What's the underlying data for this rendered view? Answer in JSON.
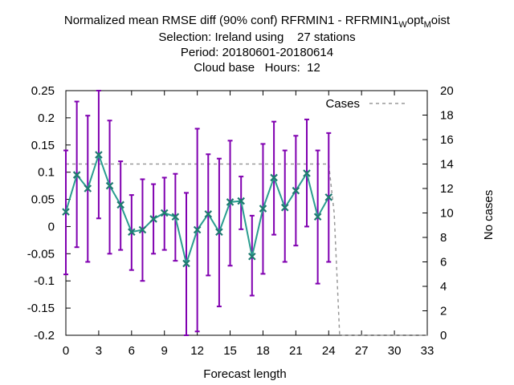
{
  "header": {
    "title_main": "Normalized mean RMSE diff (90% conf) RFRMIN1 - RFRMIN1",
    "title_sub1": "W",
    "title_mid": "opt",
    "title_sub2": "M",
    "title_end": "oist",
    "selection": "Selection: Ireland using    27 stations",
    "period": "Period: 20180601-20180614",
    "cloud": "Cloud base   Hours:  12"
  },
  "chart_data": {
    "type": "line",
    "xlabel": "Forecast length",
    "ylabel": "",
    "y2label": "No cases",
    "xlim": [
      0,
      33
    ],
    "ylim": [
      -0.2,
      0.25
    ],
    "y2lim": [
      0,
      20
    ],
    "xticks": [
      "0",
      "3",
      "6",
      "9",
      "12",
      "15",
      "18",
      "21",
      "24",
      "27",
      "30",
      "33"
    ],
    "yticks": [
      "0.25",
      "0.2",
      "0.15",
      "0.1",
      "0.05",
      "0",
      "-0.05",
      "-0.1",
      "-0.15",
      "-0.2"
    ],
    "y2ticks": [
      "20",
      "18",
      "16",
      "14",
      "12",
      "10",
      "8",
      "6",
      "4",
      "2",
      "0"
    ],
    "legend": "top-right",
    "grid": false,
    "series": [
      {
        "name": "",
        "color": "#2a9d8f",
        "errorbar_color": "#8000b0",
        "x": [
          0,
          1,
          2,
          3,
          4,
          5,
          6,
          7,
          8,
          9,
          10,
          11,
          12,
          13,
          14,
          15,
          16,
          17,
          18,
          19,
          20,
          21,
          22,
          23,
          24
        ],
        "y": [
          0.027,
          0.095,
          0.07,
          0.132,
          0.075,
          0.04,
          -0.01,
          -0.006,
          0.014,
          0.025,
          0.018,
          -0.068,
          -0.006,
          0.023,
          -0.01,
          0.045,
          0.047,
          -0.055,
          0.033,
          0.09,
          0.035,
          0.066,
          0.098,
          0.018,
          0.054
        ],
        "low": [
          -0.088,
          -0.038,
          -0.065,
          0.015,
          -0.05,
          -0.043,
          -0.08,
          -0.1,
          -0.05,
          -0.043,
          -0.063,
          -0.2,
          -0.193,
          -0.09,
          -0.147,
          -0.072,
          -0.005,
          -0.127,
          -0.087,
          -0.015,
          -0.065,
          -0.035,
          0.0,
          -0.105,
          -0.065
        ],
        "high": [
          0.14,
          0.23,
          0.204,
          0.25,
          0.195,
          0.12,
          0.058,
          0.087,
          0.078,
          0.09,
          0.097,
          0.062,
          0.18,
          0.133,
          0.125,
          0.158,
          0.092,
          0.02,
          0.152,
          0.193,
          0.14,
          0.167,
          0.197,
          0.14,
          0.172
        ]
      },
      {
        "name": "Cases",
        "axis": "y2",
        "color": "#999999",
        "x": [
          0,
          24,
          24.5,
          25,
          33
        ],
        "y": [
          14,
          14,
          10,
          0,
          0
        ]
      }
    ]
  }
}
